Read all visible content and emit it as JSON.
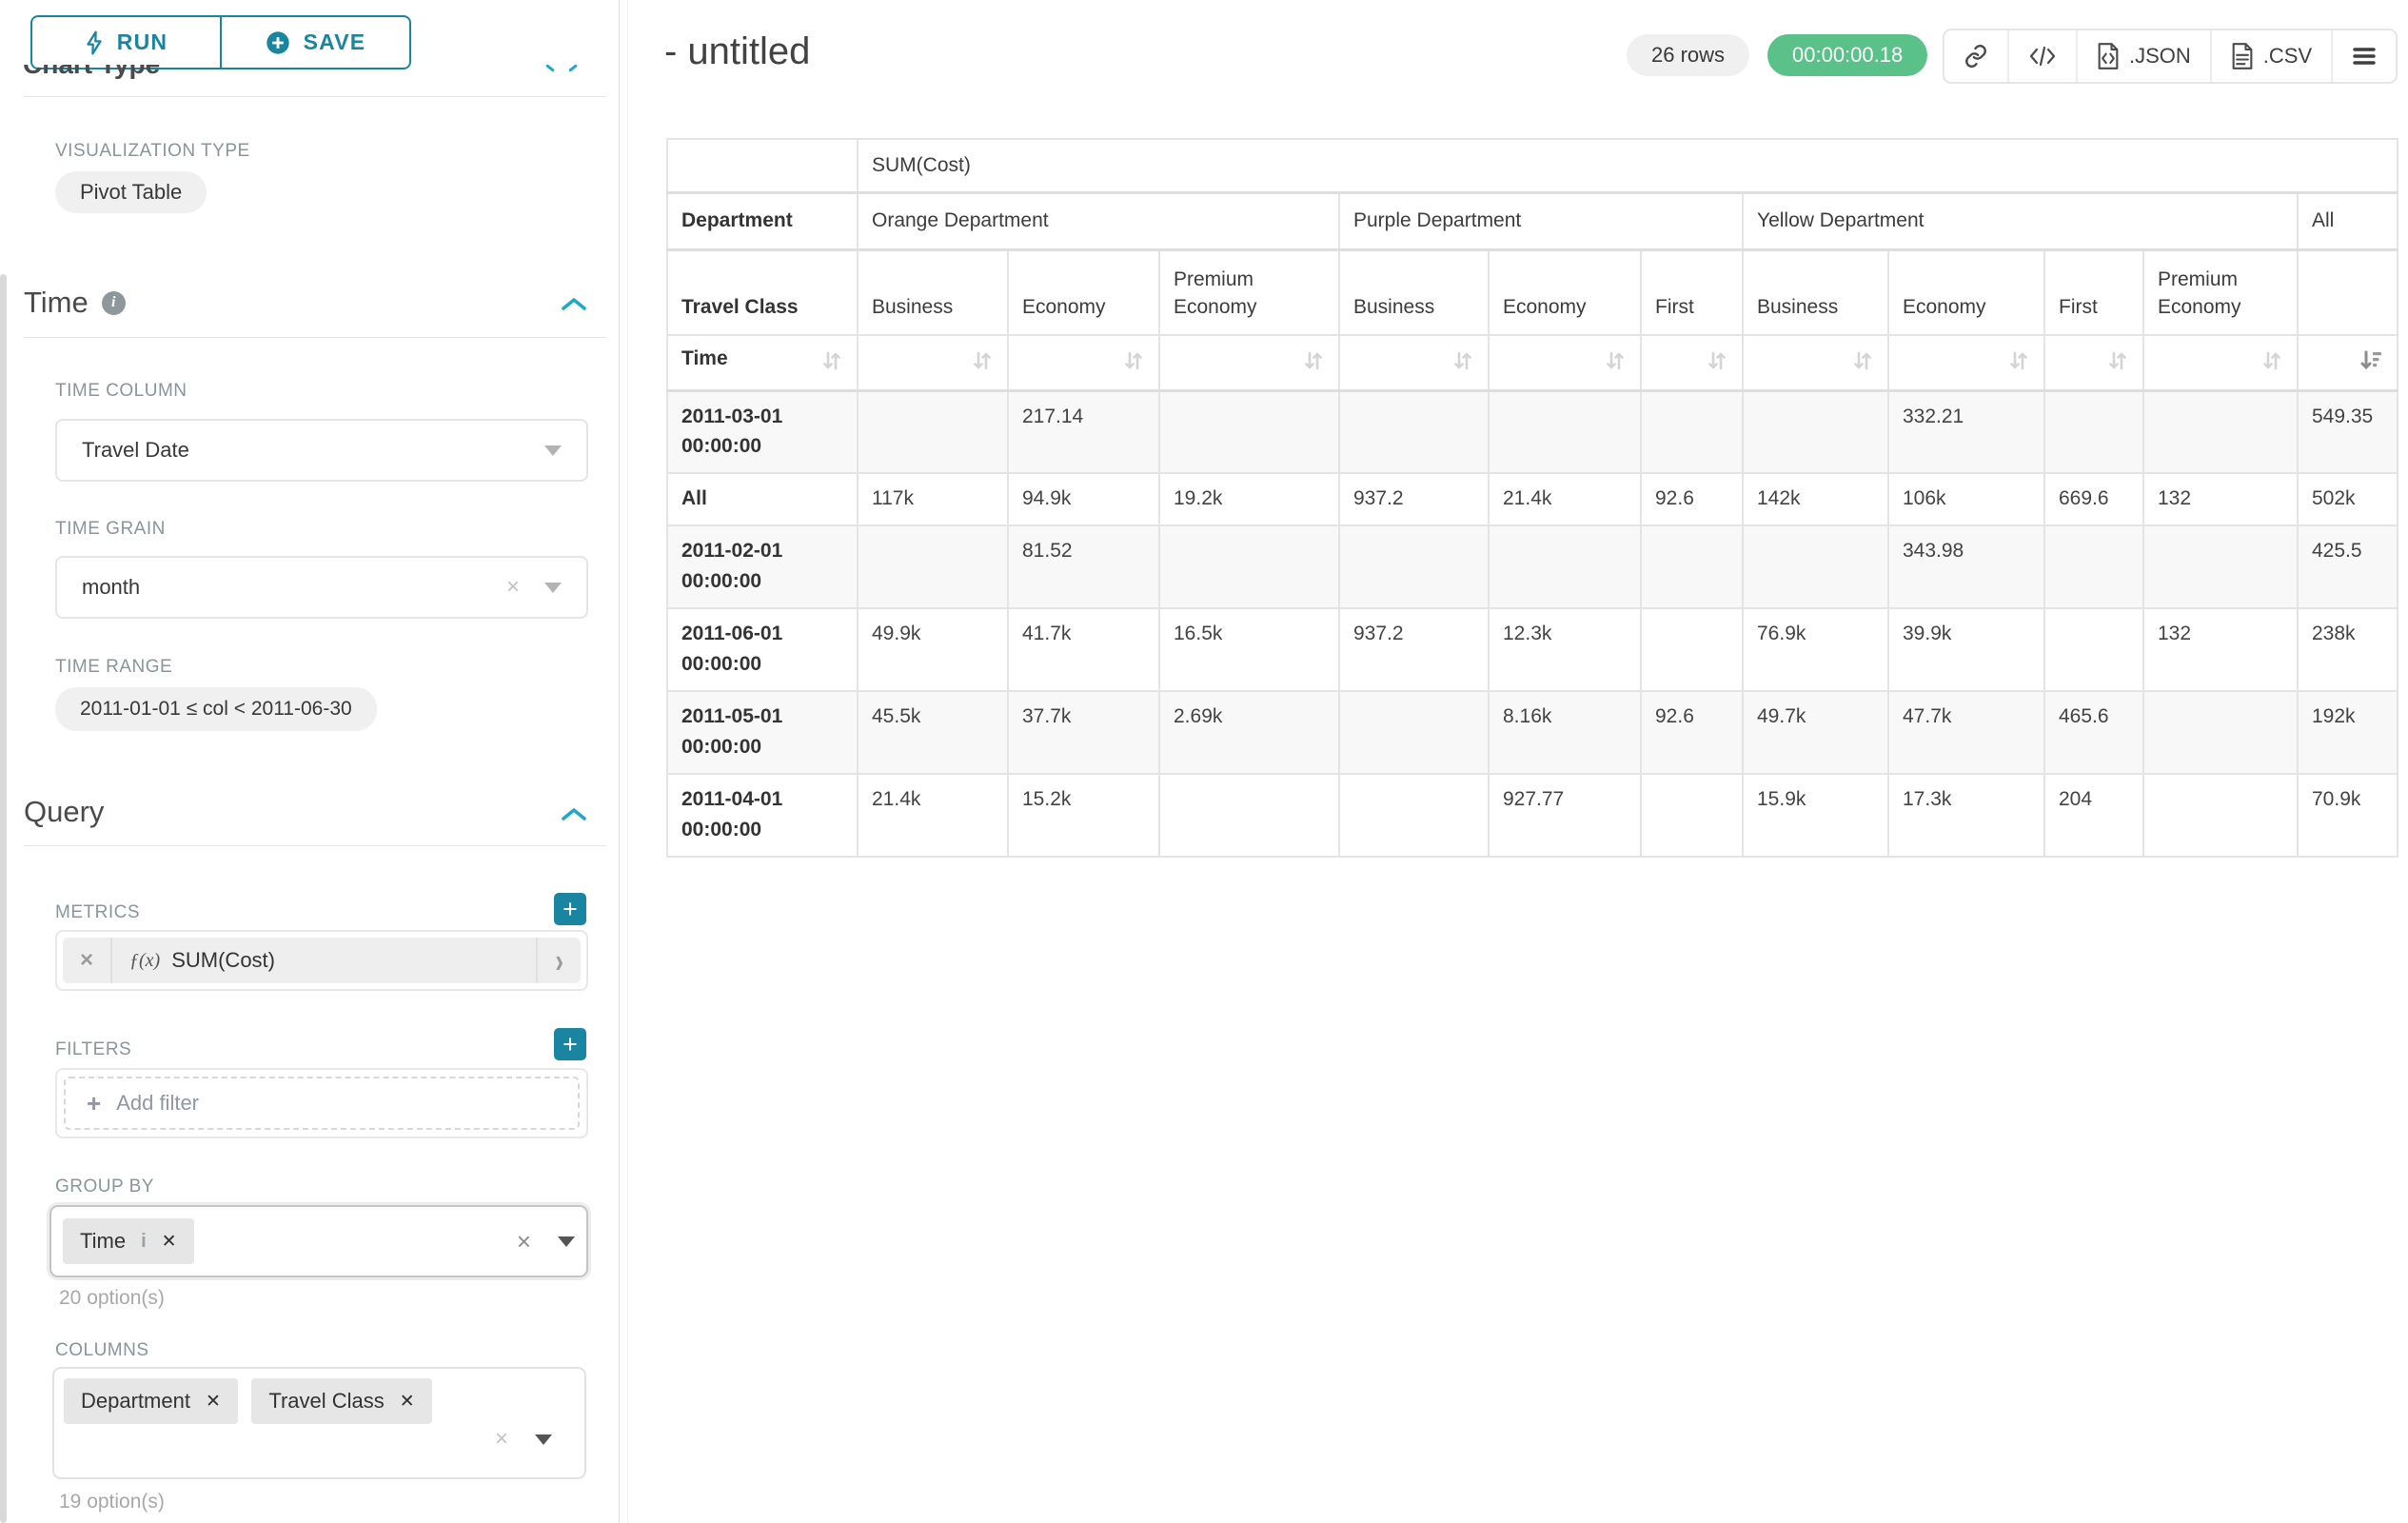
{
  "colors": {
    "accent": "#1985a0",
    "chevron": "#20a7c9",
    "timer_green": "#5ac189",
    "border": "#e4e4e4"
  },
  "icons": {
    "run": "lightning-bolt",
    "save": "plus-circle",
    "time_info": "info-circle",
    "section_collapse": "chevron-up",
    "select_caret": "triangle-down",
    "clear": "x",
    "metric_function": "fx",
    "metric_expand": "chevron-right",
    "add": "plus",
    "copy_link": "link",
    "embed_code": "code-brackets",
    "export_json": "file-code",
    "export_csv": "file-lines",
    "menu": "hamburger",
    "sort": "arrows-up-down",
    "sort_desc": "sort-amount-desc"
  },
  "sidebar": {
    "run_label": "RUN",
    "save_label": "SAVE",
    "chart_type_heading": "Chart Type",
    "viz_type_label": "VISUALIZATION TYPE",
    "viz_type_value": "Pivot Table",
    "time_section": "Time",
    "time_column_label": "TIME COLUMN",
    "time_column_value": "Travel Date",
    "time_grain_label": "TIME GRAIN",
    "time_grain_value": "month",
    "time_range_label": "TIME RANGE",
    "time_range_value": "2011-01-01 ≤ col < 2011-06-30",
    "query_section": "Query",
    "metrics_label": "METRICS",
    "metric_fx": "ƒ(x)",
    "metric_value": "SUM(Cost)",
    "filters_label": "FILTERS",
    "add_filter_label": "Add filter",
    "groupby_label": "GROUP BY",
    "groupby_tag": "Time",
    "groupby_options": "20 option(s)",
    "columns_label": "COLUMNS",
    "columns_tags": {
      "0": "Department",
      "1": "Travel Class"
    },
    "columns_options": "19 option(s)"
  },
  "header": {
    "title": "- untitled",
    "row_count": "26 rows",
    "query_time": "00:00:00.18",
    "export_json_label": ".JSON",
    "export_csv_label": ".CSV"
  },
  "chart_data": {
    "type": "table",
    "metric": "SUM(Cost)",
    "row_dimension": "Time",
    "column_dimensions": {
      "0": "Department",
      "1": "Travel Class"
    },
    "column_groups": {
      "0": {
        "label": "Orange Department",
        "children": {
          "0": "Business",
          "1": "Economy",
          "2": "Premium Economy"
        }
      },
      "1": {
        "label": "Purple Department",
        "children": {
          "0": "Business",
          "1": "Economy",
          "2": "First"
        }
      },
      "2": {
        "label": "Yellow Department",
        "children": {
          "0": "Business",
          "1": "Economy",
          "2": "First",
          "3": "Premium Economy"
        }
      },
      "3": {
        "label": "All"
      }
    },
    "sorted_by": "All",
    "sort_direction": "descending",
    "rows": [
      {
        "label": "2011-03-01 00:00:00",
        "cells": [
          "",
          "217.14",
          "",
          "",
          "",
          "",
          "",
          "332.21",
          "",
          "",
          "549.35"
        ]
      },
      {
        "label": "All",
        "cells": [
          "117k",
          "94.9k",
          "19.2k",
          "937.2",
          "21.4k",
          "92.6",
          "142k",
          "106k",
          "669.6",
          "132",
          "502k"
        ]
      },
      {
        "label": "2011-02-01 00:00:00",
        "cells": [
          "",
          "81.52",
          "",
          "",
          "",
          "",
          "",
          "343.98",
          "",
          "",
          "425.5"
        ]
      },
      {
        "label": "2011-06-01 00:00:00",
        "cells": [
          "49.9k",
          "41.7k",
          "16.5k",
          "937.2",
          "12.3k",
          "",
          "76.9k",
          "39.9k",
          "",
          "132",
          "238k"
        ]
      },
      {
        "label": "2011-05-01 00:00:00",
        "cells": [
          "45.5k",
          "37.7k",
          "2.69k",
          "",
          "8.16k",
          "92.6",
          "49.7k",
          "47.7k",
          "465.6",
          "",
          "192k"
        ]
      },
      {
        "label": "2011-04-01 00:00:00",
        "cells": [
          "21.4k",
          "15.2k",
          "",
          "",
          "927.77",
          "",
          "15.9k",
          "17.3k",
          "204",
          "",
          "70.9k"
        ]
      }
    ]
  }
}
